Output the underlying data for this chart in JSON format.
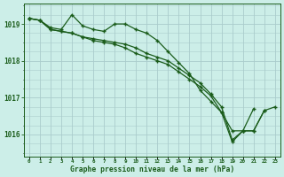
{
  "title": "Graphe pression niveau de la mer (hPa)",
  "bg_color": "#cceee8",
  "grid_color": "#aacccc",
  "line_color": "#1a5c1a",
  "ylim": [
    1015.4,
    1019.55
  ],
  "yticks": [
    1016,
    1017,
    1018,
    1019
  ],
  "series": [
    {
      "x": [
        0,
        1,
        2,
        3,
        4,
        5,
        6,
        7,
        8,
        9,
        10,
        11,
        12,
        13,
        14,
        15,
        16,
        17,
        18,
        19,
        20,
        21
      ],
      "y": [
        1019.15,
        1019.1,
        1018.9,
        1018.85,
        1019.25,
        1018.95,
        1018.85,
        1018.8,
        1019.0,
        1019.0,
        1018.85,
        1018.75,
        1018.55,
        1018.25,
        1017.95,
        1017.65,
        1017.2,
        1016.9,
        1016.6,
        1016.1,
        1016.1,
        1016.7
      ]
    },
    {
      "x": [
        0,
        1,
        2,
        3,
        4,
        5,
        6,
        7,
        8,
        9,
        10,
        11,
        12,
        13,
        14,
        15,
        16,
        17,
        18,
        19,
        20,
        21,
        22
      ],
      "y": [
        1019.15,
        1019.1,
        1018.85,
        1018.8,
        1018.75,
        1018.65,
        1018.6,
        1018.55,
        1018.5,
        1018.45,
        1018.35,
        1018.2,
        1018.1,
        1018.0,
        1017.8,
        1017.6,
        1017.4,
        1017.1,
        1016.75,
        1015.85,
        1016.1,
        1016.1,
        1016.65
      ]
    },
    {
      "x": [
        0,
        1,
        2,
        3,
        4,
        5,
        6,
        7,
        8,
        9,
        10,
        11,
        12,
        13,
        14,
        15,
        16,
        17,
        18,
        19,
        20,
        21,
        22,
        23
      ],
      "y": [
        1019.15,
        1019.1,
        1018.85,
        1018.8,
        1018.75,
        1018.65,
        1018.55,
        1018.5,
        1018.45,
        1018.35,
        1018.2,
        1018.1,
        1018.0,
        1017.9,
        1017.7,
        1017.5,
        1017.3,
        1017.05,
        1016.6,
        1015.8,
        1016.1,
        1016.1,
        1016.65,
        1016.75
      ]
    }
  ],
  "x_labels": [
    "0",
    "1",
    "2",
    "3",
    "4",
    "5",
    "6",
    "7",
    "8",
    "9",
    "10",
    "11",
    "12",
    "13",
    "14",
    "15",
    "16",
    "17",
    "18",
    "19",
    "20",
    "21",
    "22",
    "23"
  ],
  "figsize": [
    3.2,
    2.0
  ],
  "dpi": 100
}
